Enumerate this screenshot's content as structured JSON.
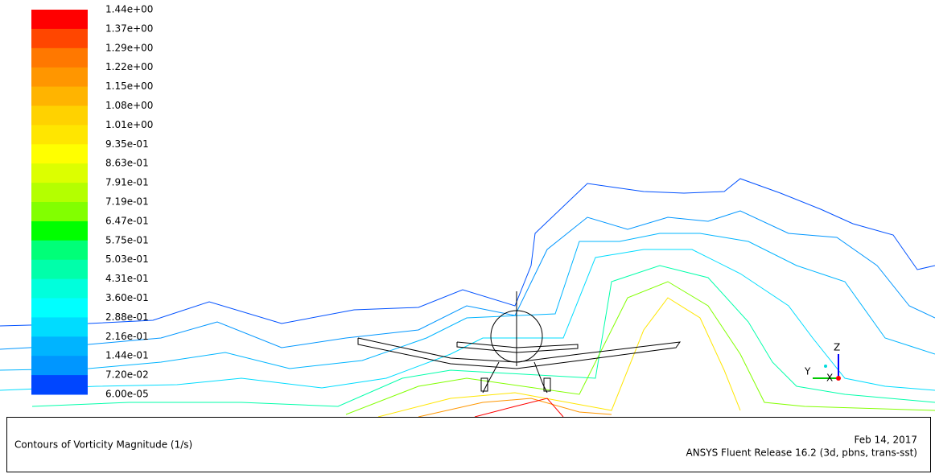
{
  "colorbar": {
    "labels": [
      "1.44e+00",
      "1.37e+00",
      "1.29e+00",
      "1.22e+00",
      "1.15e+00",
      "1.08e+00",
      "1.01e+00",
      "9.35e-01",
      "8.63e-01",
      "7.91e-01",
      "7.19e-01",
      "6.47e-01",
      "5.75e-01",
      "5.03e-01",
      "4.31e-01",
      "3.60e-01",
      "2.88e-01",
      "2.16e-01",
      "1.44e-01",
      "7.20e-02",
      "6.00e-05"
    ],
    "colors": [
      "#ff0000",
      "#ff4600",
      "#ff7800",
      "#ff9600",
      "#ffb400",
      "#ffd200",
      "#ffe600",
      "#ffff00",
      "#dcff00",
      "#b4ff00",
      "#82ff00",
      "#00ff00",
      "#00ff78",
      "#00ffaa",
      "#00ffdc",
      "#00ffff",
      "#00dcff",
      "#00b4ff",
      "#0096ff",
      "#0046ff"
    ]
  },
  "triad": {
    "z": "Z",
    "y": "Y",
    "x": "X"
  },
  "footer": {
    "title": "Contours of Vorticity Magnitude (1/s)",
    "date": "Feb 14, 2017",
    "release": "ANSYS Fluent Release 16.2 (3d, pbns, trans-sst)"
  }
}
